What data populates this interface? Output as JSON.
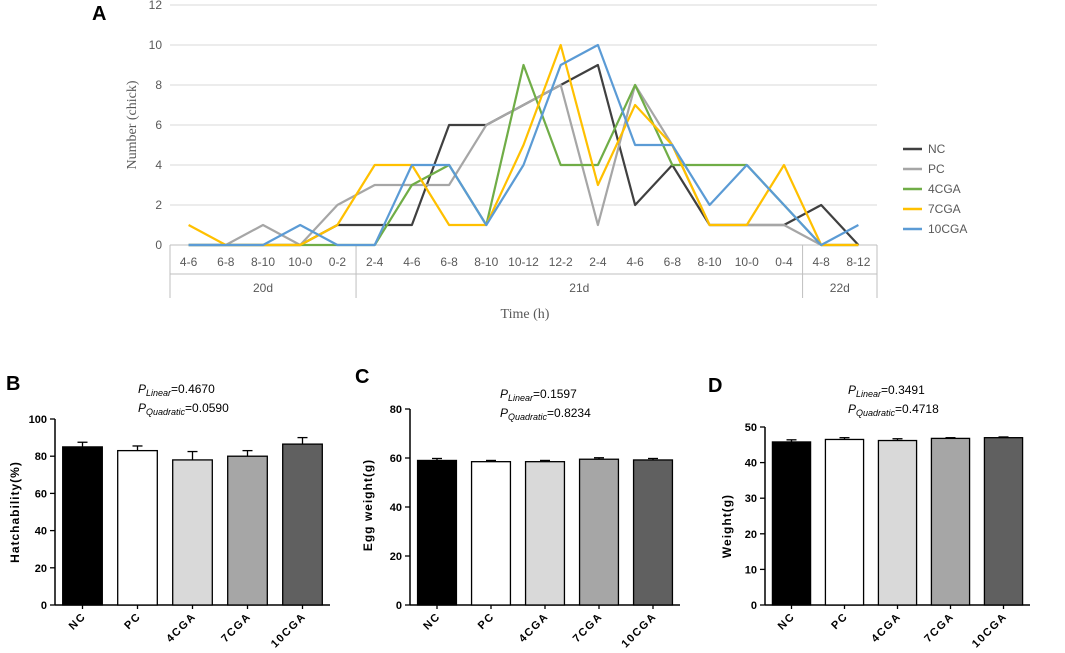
{
  "chart_data": [
    {
      "type": "line",
      "panel": "A",
      "title": "",
      "ylabel": "Number (chick)",
      "xlabel": "Time (h)",
      "ylim": [
        0,
        12
      ],
      "yticks": [
        0,
        2,
        4,
        6,
        8,
        10,
        12
      ],
      "grid": true,
      "legend": "right",
      "categories": [
        "4-6",
        "6-8",
        "8-10",
        "10-0",
        "0-2",
        "2-4",
        "4-6",
        "6-8",
        "8-10",
        "10-12",
        "12-2",
        "2-4",
        "4-6",
        "6-8",
        "8-10",
        "10-0",
        "0-4",
        "4-8",
        "8-12"
      ],
      "groups": [
        {
          "label": "20d",
          "count": 5
        },
        {
          "label": "21d",
          "count": 12
        },
        {
          "label": "22d",
          "count": 2
        }
      ],
      "series": [
        {
          "name": "NC",
          "color": "#404040",
          "values": [
            0,
            0,
            0,
            0,
            1,
            1,
            1,
            6,
            6,
            7,
            8,
            9,
            2,
            4,
            1,
            1,
            1,
            2,
            0
          ]
        },
        {
          "name": "PC",
          "color": "#a6a6a6",
          "values": [
            0,
            0,
            1,
            0,
            2,
            3,
            3,
            3,
            6,
            7,
            8,
            1,
            8,
            5,
            1,
            1,
            1,
            0,
            0
          ]
        },
        {
          "name": "4CGA",
          "color": "#70ad47",
          "values": [
            0,
            0,
            0,
            0,
            0,
            0,
            3,
            4,
            1,
            9,
            4,
            4,
            8,
            4,
            4,
            4,
            2,
            0,
            0
          ]
        },
        {
          "name": "7CGA",
          "color": "#ffc000",
          "values": [
            1,
            0,
            0,
            0,
            1,
            4,
            4,
            1,
            1,
            5,
            10,
            3,
            7,
            5,
            1,
            1,
            4,
            0,
            0
          ]
        },
        {
          "name": "10CGA",
          "color": "#5b9bd5",
          "values": [
            0,
            0,
            0,
            1,
            0,
            0,
            4,
            4,
            1,
            4,
            9,
            10,
            5,
            5,
            2,
            4,
            2,
            0,
            1
          ]
        }
      ]
    },
    {
      "type": "bar",
      "panel": "B",
      "ylabel": "Hatchability(%)",
      "ylim": [
        0,
        100
      ],
      "yticks": [
        0,
        20,
        40,
        60,
        80,
        100
      ],
      "categories": [
        "NC",
        "PC",
        "4CGA",
        "7CGA",
        "10CGA"
      ],
      "values": [
        85,
        83,
        78,
        80,
        86.5
      ],
      "errors": [
        2.5,
        2.5,
        4.5,
        3,
        3.5
      ],
      "fills": [
        "#000000",
        "#ffffff",
        "#d9d9d9",
        "#a6a6a6",
        "#606060"
      ],
      "p_linear_label": "Linear",
      "p_linear_value": "=0.4670",
      "p_quadratic_label": "Quadratic",
      "p_quadratic_value": "=0.0590"
    },
    {
      "type": "bar",
      "panel": "C",
      "ylabel": "Egg weight(g)",
      "ylim": [
        0,
        80
      ],
      "yticks": [
        0,
        20,
        40,
        60,
        80
      ],
      "categories": [
        "NC",
        "PC",
        "4CGA",
        "7CGA",
        "10CGA"
      ],
      "values": [
        59,
        58.5,
        58.5,
        59.5,
        59.2
      ],
      "errors": [
        0.8,
        0.5,
        0.5,
        0.6,
        0.6
      ],
      "fills": [
        "#000000",
        "#ffffff",
        "#d9d9d9",
        "#a6a6a6",
        "#606060"
      ],
      "p_linear_label": "Linear",
      "p_linear_value": "=0.1597",
      "p_quadratic_label": "Quadratic",
      "p_quadratic_value": "=0.8234"
    },
    {
      "type": "bar",
      "panel": "D",
      "ylabel": "Weight(g)",
      "ylim": [
        0,
        50
      ],
      "yticks": [
        0,
        10,
        20,
        30,
        40,
        50
      ],
      "categories": [
        "NC",
        "PC",
        "4CGA",
        "7CGA",
        "10CGA"
      ],
      "values": [
        45.8,
        46.5,
        46.2,
        46.8,
        47
      ],
      "errors": [
        0.6,
        0.5,
        0.5,
        0.2,
        0.2
      ],
      "fills": [
        "#000000",
        "#ffffff",
        "#d9d9d9",
        "#a6a6a6",
        "#606060"
      ],
      "p_linear_label": "Linear",
      "p_linear_value": "=0.3491",
      "p_quadratic_label": "Quadratic",
      "p_quadratic_value": "=0.4718"
    }
  ],
  "p_symbol": "P"
}
